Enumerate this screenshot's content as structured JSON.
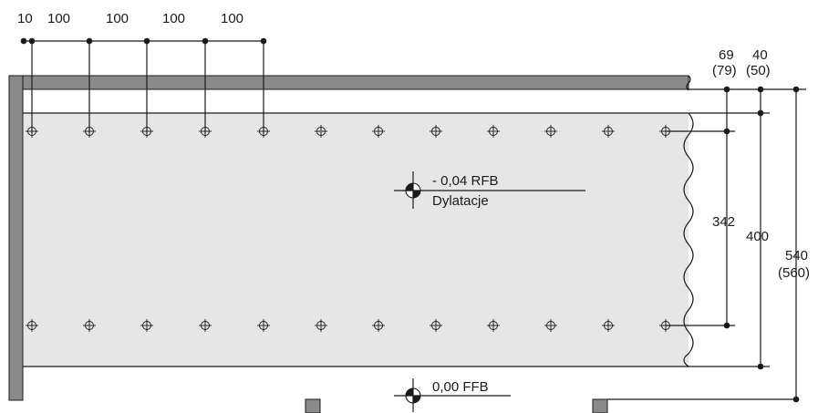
{
  "top_dimensions": [
    "10",
    "100",
    "100",
    "100",
    "100"
  ],
  "right_dimensions": {
    "d69": "69",
    "d79": "(79)",
    "d40": "40",
    "d50": "(50)",
    "d342": "342",
    "d400": "400",
    "d540": "540",
    "d560": "(560)"
  },
  "level_upper": {
    "value": "- 0,04 RFB",
    "note": "Dylatacje"
  },
  "level_lower": {
    "value": "0,00 FFB"
  },
  "colors": {
    "wall": "#8a8a8a",
    "slab": "#e6e6e6",
    "ink": "#1a1a1a"
  }
}
